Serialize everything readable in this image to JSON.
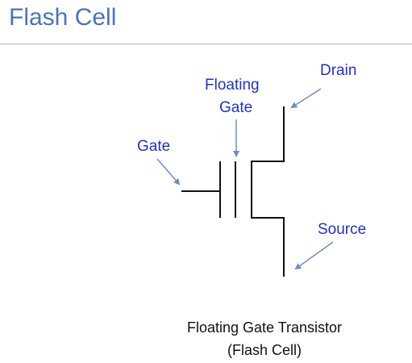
{
  "slide": {
    "title": "Flash Cell"
  },
  "diagram": {
    "labels": {
      "drain": "Drain",
      "floating_gate_line1": "Floating",
      "floating_gate_line2": "Gate",
      "gate": "Gate",
      "source": "Source"
    },
    "caption_line1": "Floating Gate Transistor",
    "caption_line2": "(Flash Cell)"
  },
  "colors": {
    "title": "#4a74b8",
    "label_text": "#2233bb",
    "arrow": "#6a8fc8",
    "circuit": "#111111"
  }
}
